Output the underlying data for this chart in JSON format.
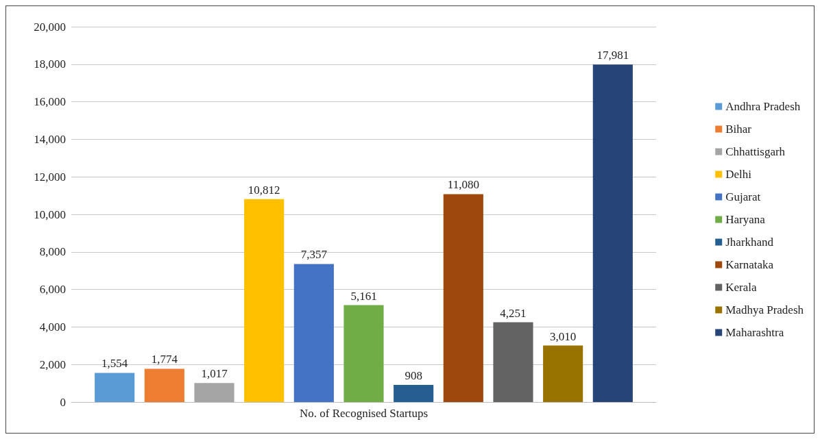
{
  "chart_data": {
    "type": "bar",
    "categories": [
      "No. of Recognised Startups"
    ],
    "series": [
      {
        "name": "Andhra Pradesh",
        "color": "#5b9bd5",
        "values": [
          1554
        ],
        "value_labels": [
          "1,554"
        ]
      },
      {
        "name": "Bihar",
        "color": "#ed7d31",
        "values": [
          1774
        ],
        "value_labels": [
          "1,774"
        ]
      },
      {
        "name": "Chhattisgarh",
        "color": "#a5a5a5",
        "values": [
          1017
        ],
        "value_labels": [
          "1,017"
        ]
      },
      {
        "name": "Delhi",
        "color": "#ffc000",
        "values": [
          10812
        ],
        "value_labels": [
          "10,812"
        ]
      },
      {
        "name": "Gujarat",
        "color": "#4472c4",
        "values": [
          7357
        ],
        "value_labels": [
          "7,357"
        ]
      },
      {
        "name": "Haryana",
        "color": "#70ad47",
        "values": [
          5161
        ],
        "value_labels": [
          "5,161"
        ]
      },
      {
        "name": "Jharkhand",
        "color": "#255e91",
        "values": [
          908
        ],
        "value_labels": [
          "908"
        ]
      },
      {
        "name": "Karnataka",
        "color": "#9e480e",
        "values": [
          11080
        ],
        "value_labels": [
          "11,080"
        ]
      },
      {
        "name": "Kerala",
        "color": "#636363",
        "values": [
          4251
        ],
        "value_labels": [
          "4,251"
        ]
      },
      {
        "name": "Madhya Pradesh",
        "color": "#997300",
        "values": [
          3010
        ],
        "value_labels": [
          "3,010"
        ]
      },
      {
        "name": "Maharashtra",
        "color": "#264478",
        "values": [
          17981
        ],
        "value_labels": [
          "17,981"
        ]
      }
    ],
    "ylim": [
      0,
      20000
    ],
    "yticks": [
      0,
      {
        "value": 2000,
        "label": "2,000"
      },
      {
        "value": 4000,
        "label": "4,000"
      },
      {
        "value": 6000,
        "label": "6,000"
      },
      {
        "value": 8000,
        "label": "8,000"
      },
      {
        "value": 10000,
        "label": "10,000"
      },
      {
        "value": 12000,
        "label": "12,000"
      },
      {
        "value": 14000,
        "label": "14,000"
      },
      {
        "value": 16000,
        "label": "16,000"
      },
      {
        "value": 18000,
        "label": "18,000"
      },
      {
        "value": 20000,
        "label": "20,000"
      }
    ],
    "grid": "y",
    "legend": "right"
  }
}
